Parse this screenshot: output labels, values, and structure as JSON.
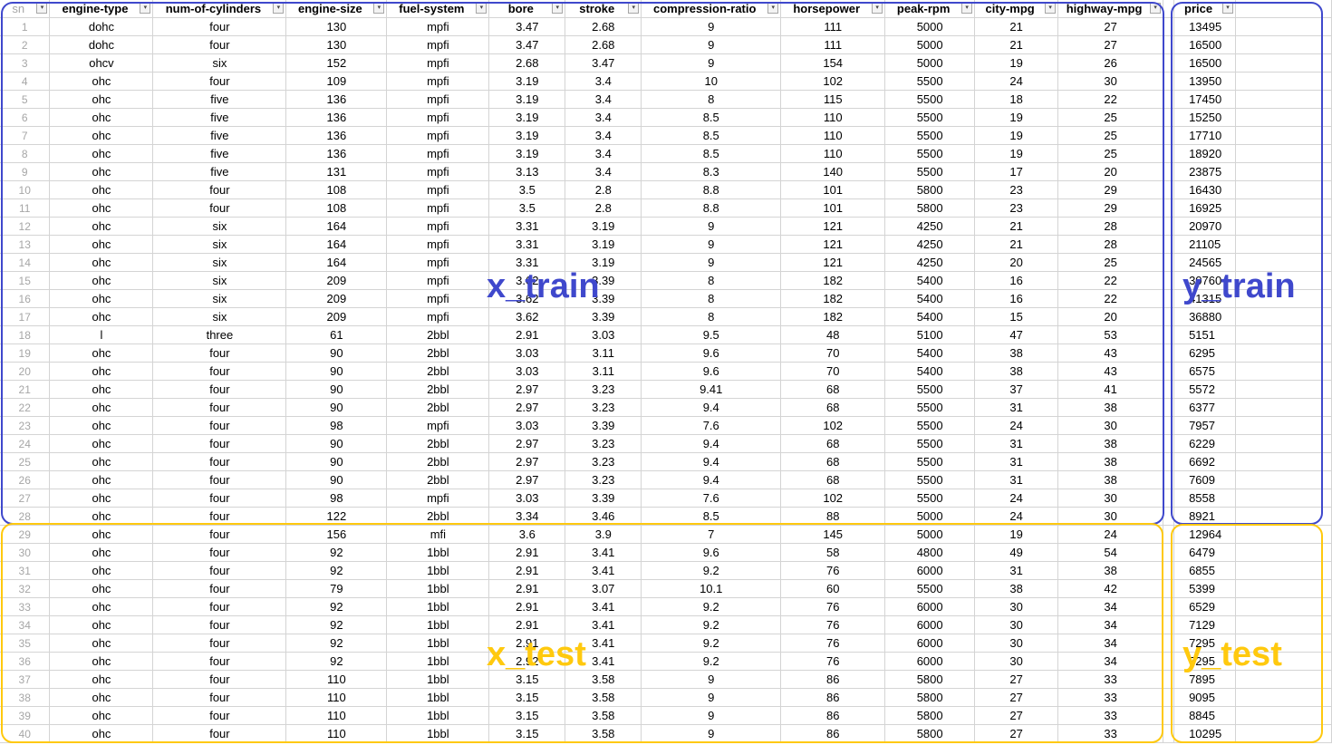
{
  "headers": {
    "sn": "sn",
    "engine_type": "engine-type",
    "num_of_cylinders": "num-of-cylinders",
    "engine_size": "engine-size",
    "fuel_system": "fuel-system",
    "bore": "bore",
    "stroke": "stroke",
    "compression_ratio": "compression-ratio",
    "horsepower": "horsepower",
    "peak_rpm": "peak-rpm",
    "city_mpg": "city-mpg",
    "highway_mpg": "highway-mpg",
    "price": "price"
  },
  "filter_icon_glyph": "▾",
  "rows": [
    [
      "1",
      "dohc",
      "four",
      "130",
      "mpfi",
      "3.47",
      "2.68",
      "9",
      "111",
      "5000",
      "21",
      "27",
      "13495"
    ],
    [
      "2",
      "dohc",
      "four",
      "130",
      "mpfi",
      "3.47",
      "2.68",
      "9",
      "111",
      "5000",
      "21",
      "27",
      "16500"
    ],
    [
      "3",
      "ohcv",
      "six",
      "152",
      "mpfi",
      "2.68",
      "3.47",
      "9",
      "154",
      "5000",
      "19",
      "26",
      "16500"
    ],
    [
      "4",
      "ohc",
      "four",
      "109",
      "mpfi",
      "3.19",
      "3.4",
      "10",
      "102",
      "5500",
      "24",
      "30",
      "13950"
    ],
    [
      "5",
      "ohc",
      "five",
      "136",
      "mpfi",
      "3.19",
      "3.4",
      "8",
      "115",
      "5500",
      "18",
      "22",
      "17450"
    ],
    [
      "6",
      "ohc",
      "five",
      "136",
      "mpfi",
      "3.19",
      "3.4",
      "8.5",
      "110",
      "5500",
      "19",
      "25",
      "15250"
    ],
    [
      "7",
      "ohc",
      "five",
      "136",
      "mpfi",
      "3.19",
      "3.4",
      "8.5",
      "110",
      "5500",
      "19",
      "25",
      "17710"
    ],
    [
      "8",
      "ohc",
      "five",
      "136",
      "mpfi",
      "3.19",
      "3.4",
      "8.5",
      "110",
      "5500",
      "19",
      "25",
      "18920"
    ],
    [
      "9",
      "ohc",
      "five",
      "131",
      "mpfi",
      "3.13",
      "3.4",
      "8.3",
      "140",
      "5500",
      "17",
      "20",
      "23875"
    ],
    [
      "10",
      "ohc",
      "four",
      "108",
      "mpfi",
      "3.5",
      "2.8",
      "8.8",
      "101",
      "5800",
      "23",
      "29",
      "16430"
    ],
    [
      "11",
      "ohc",
      "four",
      "108",
      "mpfi",
      "3.5",
      "2.8",
      "8.8",
      "101",
      "5800",
      "23",
      "29",
      "16925"
    ],
    [
      "12",
      "ohc",
      "six",
      "164",
      "mpfi",
      "3.31",
      "3.19",
      "9",
      "121",
      "4250",
      "21",
      "28",
      "20970"
    ],
    [
      "13",
      "ohc",
      "six",
      "164",
      "mpfi",
      "3.31",
      "3.19",
      "9",
      "121",
      "4250",
      "21",
      "28",
      "21105"
    ],
    [
      "14",
      "ohc",
      "six",
      "164",
      "mpfi",
      "3.31",
      "3.19",
      "9",
      "121",
      "4250",
      "20",
      "25",
      "24565"
    ],
    [
      "15",
      "ohc",
      "six",
      "209",
      "mpfi",
      "3.62",
      "3.39",
      "8",
      "182",
      "5400",
      "16",
      "22",
      "30760"
    ],
    [
      "16",
      "ohc",
      "six",
      "209",
      "mpfi",
      "3.62",
      "3.39",
      "8",
      "182",
      "5400",
      "16",
      "22",
      "41315"
    ],
    [
      "17",
      "ohc",
      "six",
      "209",
      "mpfi",
      "3.62",
      "3.39",
      "8",
      "182",
      "5400",
      "15",
      "20",
      "36880"
    ],
    [
      "18",
      "l",
      "three",
      "61",
      "2bbl",
      "2.91",
      "3.03",
      "9.5",
      "48",
      "5100",
      "47",
      "53",
      "5151"
    ],
    [
      "19",
      "ohc",
      "four",
      "90",
      "2bbl",
      "3.03",
      "3.11",
      "9.6",
      "70",
      "5400",
      "38",
      "43",
      "6295"
    ],
    [
      "20",
      "ohc",
      "four",
      "90",
      "2bbl",
      "3.03",
      "3.11",
      "9.6",
      "70",
      "5400",
      "38",
      "43",
      "6575"
    ],
    [
      "21",
      "ohc",
      "four",
      "90",
      "2bbl",
      "2.97",
      "3.23",
      "9.41",
      "68",
      "5500",
      "37",
      "41",
      "5572"
    ],
    [
      "22",
      "ohc",
      "four",
      "90",
      "2bbl",
      "2.97",
      "3.23",
      "9.4",
      "68",
      "5500",
      "31",
      "38",
      "6377"
    ],
    [
      "23",
      "ohc",
      "four",
      "98",
      "mpfi",
      "3.03",
      "3.39",
      "7.6",
      "102",
      "5500",
      "24",
      "30",
      "7957"
    ],
    [
      "24",
      "ohc",
      "four",
      "90",
      "2bbl",
      "2.97",
      "3.23",
      "9.4",
      "68",
      "5500",
      "31",
      "38",
      "6229"
    ],
    [
      "25",
      "ohc",
      "four",
      "90",
      "2bbl",
      "2.97",
      "3.23",
      "9.4",
      "68",
      "5500",
      "31",
      "38",
      "6692"
    ],
    [
      "26",
      "ohc",
      "four",
      "90",
      "2bbl",
      "2.97",
      "3.23",
      "9.4",
      "68",
      "5500",
      "31",
      "38",
      "7609"
    ],
    [
      "27",
      "ohc",
      "four",
      "98",
      "mpfi",
      "3.03",
      "3.39",
      "7.6",
      "102",
      "5500",
      "24",
      "30",
      "8558"
    ],
    [
      "28",
      "ohc",
      "four",
      "122",
      "2bbl",
      "3.34",
      "3.46",
      "8.5",
      "88",
      "5000",
      "24",
      "30",
      "8921"
    ],
    [
      "29",
      "ohc",
      "four",
      "156",
      "mfi",
      "3.6",
      "3.9",
      "7",
      "145",
      "5000",
      "19",
      "24",
      "12964"
    ],
    [
      "30",
      "ohc",
      "four",
      "92",
      "1bbl",
      "2.91",
      "3.41",
      "9.6",
      "58",
      "4800",
      "49",
      "54",
      "6479"
    ],
    [
      "31",
      "ohc",
      "four",
      "92",
      "1bbl",
      "2.91",
      "3.41",
      "9.2",
      "76",
      "6000",
      "31",
      "38",
      "6855"
    ],
    [
      "32",
      "ohc",
      "four",
      "79",
      "1bbl",
      "2.91",
      "3.07",
      "10.1",
      "60",
      "5500",
      "38",
      "42",
      "5399"
    ],
    [
      "33",
      "ohc",
      "four",
      "92",
      "1bbl",
      "2.91",
      "3.41",
      "9.2",
      "76",
      "6000",
      "30",
      "34",
      "6529"
    ],
    [
      "34",
      "ohc",
      "four",
      "92",
      "1bbl",
      "2.91",
      "3.41",
      "9.2",
      "76",
      "6000",
      "30",
      "34",
      "7129"
    ],
    [
      "35",
      "ohc",
      "four",
      "92",
      "1bbl",
      "2.91",
      "3.41",
      "9.2",
      "76",
      "6000",
      "30",
      "34",
      "7295"
    ],
    [
      "36",
      "ohc",
      "four",
      "92",
      "1bbl",
      "2.92",
      "3.41",
      "9.2",
      "76",
      "6000",
      "30",
      "34",
      "7295"
    ],
    [
      "37",
      "ohc",
      "four",
      "110",
      "1bbl",
      "3.15",
      "3.58",
      "9",
      "86",
      "5800",
      "27",
      "33",
      "7895"
    ],
    [
      "38",
      "ohc",
      "four",
      "110",
      "1bbl",
      "3.15",
      "3.58",
      "9",
      "86",
      "5800",
      "27",
      "33",
      "9095"
    ],
    [
      "39",
      "ohc",
      "four",
      "110",
      "1bbl",
      "3.15",
      "3.58",
      "9",
      "86",
      "5800",
      "27",
      "33",
      "8845"
    ],
    [
      "40",
      "ohc",
      "four",
      "110",
      "1bbl",
      "3.15",
      "3.58",
      "9",
      "86",
      "5800",
      "27",
      "33",
      "10295"
    ]
  ],
  "annotations": {
    "x_train": "x_train",
    "y_train": "y_train",
    "x_test": "x_test",
    "y_test": "y_test",
    "train_color": "#3f48cc",
    "test_color": "#ffc90e"
  }
}
